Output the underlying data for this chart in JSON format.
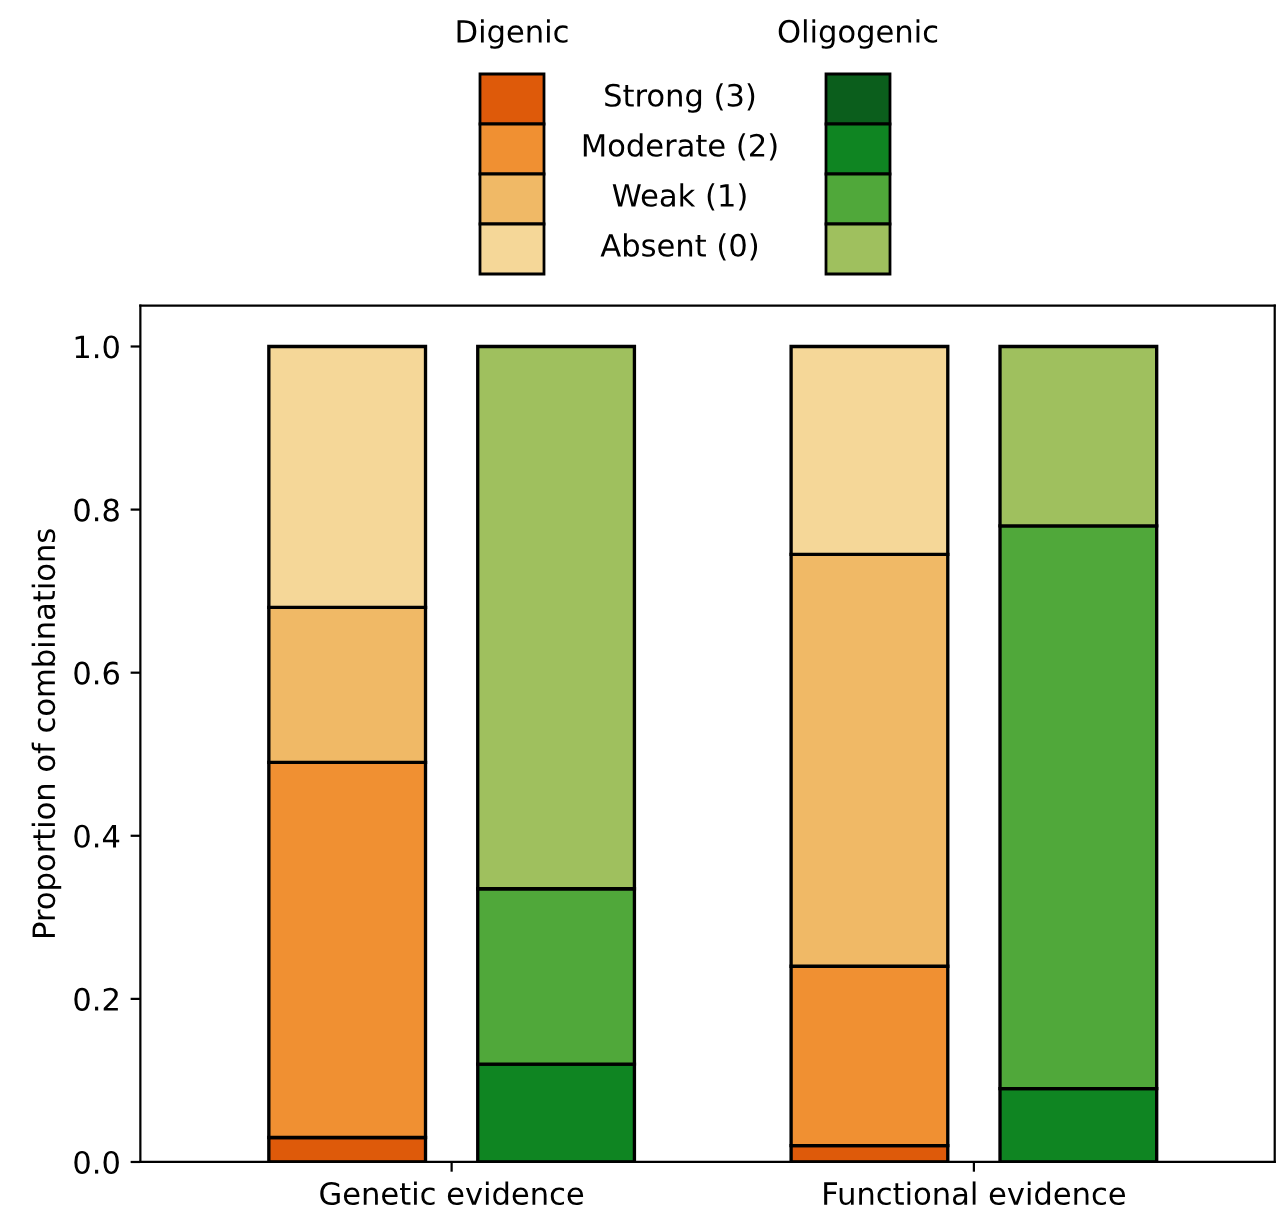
{
  "chart_data": {
    "type": "bar",
    "stacked": true,
    "ylabel": "Proportion of combinations",
    "categories": [
      null,
      null,
      null,
      null
    ],
    "annotations": [
      "Genetic evidence",
      "Functional evidence"
    ],
    "legend_title": [
      "Digenic",
      "Oligogenic"
    ],
    "legend": "top",
    "ylim": [
      0,
      1.05
    ],
    "yticks": [
      {
        "value": 0,
        "label": "0.0"
      },
      0.2,
      0.4,
      0.6,
      0.8,
      {
        "value": 1,
        "label": "1.0"
      }
    ],
    "series": [
      {
        "name": "Strong (3)",
        "color": "#de5a0a",
        "values": [
          0.03,
          null,
          0.02,
          null
        ]
      },
      {
        "name": "Moderate (2)",
        "color": "#f09032",
        "values": [
          0.46,
          null,
          0.22,
          null
        ]
      },
      {
        "name": "Weak (1)",
        "color": "#f0b966",
        "values": [
          0.19,
          null,
          0.505,
          null
        ]
      },
      {
        "name": "Absent (0)",
        "color": "#f5d798",
        "values": [
          0.32,
          null,
          0.255,
          null
        ]
      },
      {
        "color": "#0b5e1c",
        "values": [
          null,
          null,
          null,
          null
        ]
      },
      {
        "color": "#0f8522",
        "values": [
          null,
          0.12,
          null,
          0.09
        ]
      },
      {
        "color": "#50a83a",
        "values": [
          null,
          0.215,
          null,
          0.69
        ]
      },
      {
        "color": "#9fc05e",
        "values": [
          null,
          0.665,
          null,
          0.22
        ]
      }
    ]
  }
}
